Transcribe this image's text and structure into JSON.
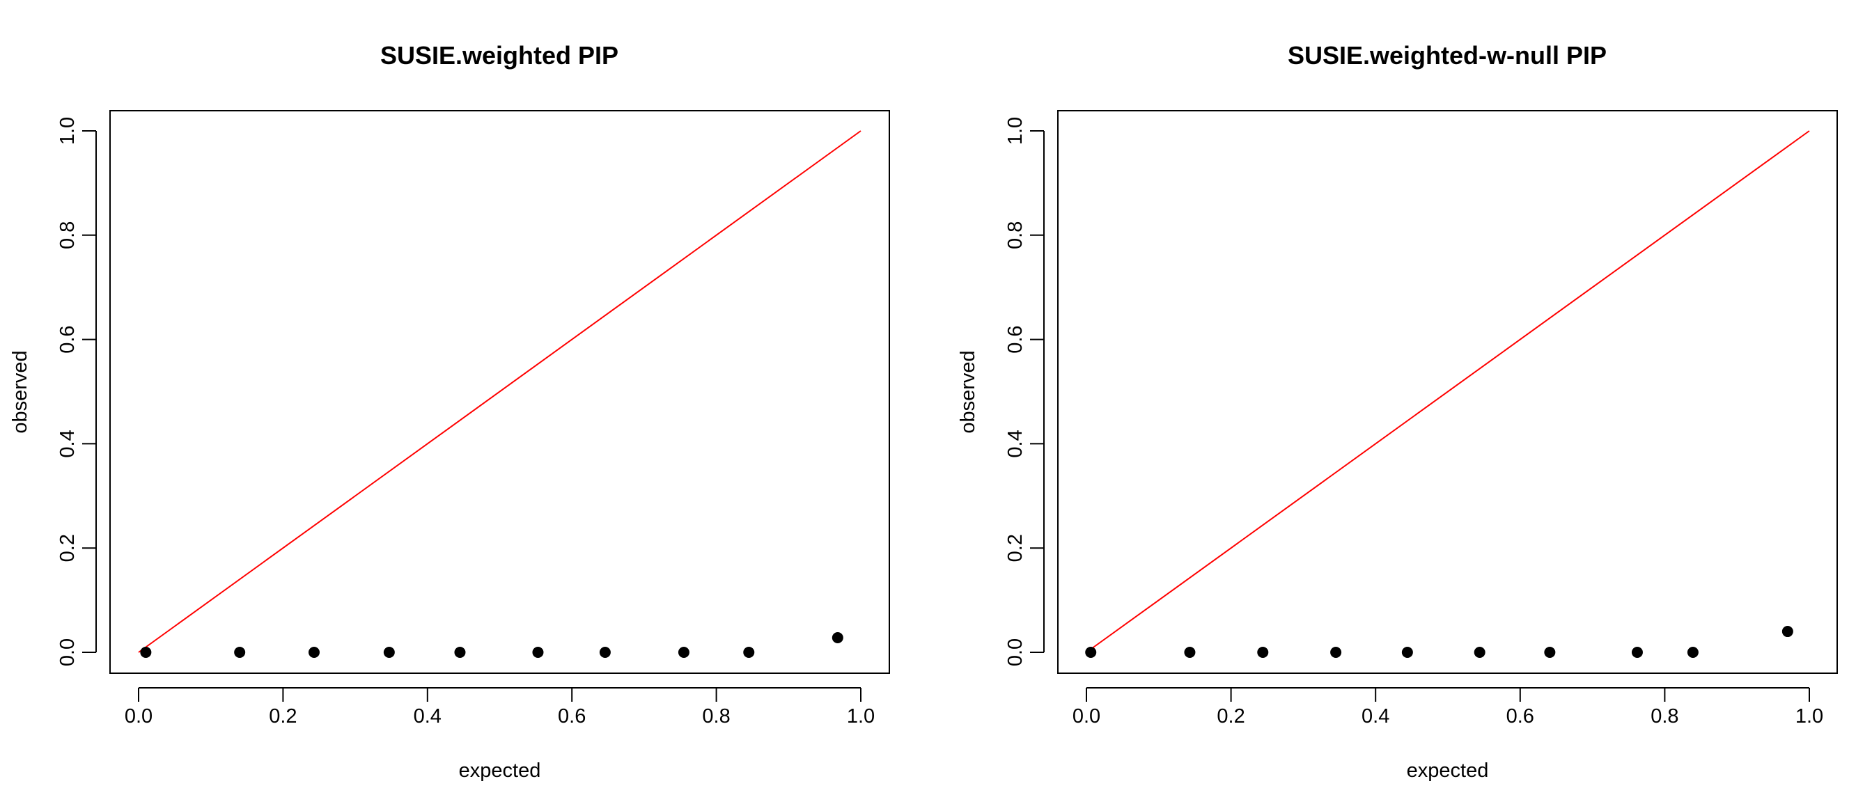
{
  "chart_data": [
    {
      "type": "scatter",
      "title": "SUSIE.weighted PIP",
      "xlabel": "expected",
      "ylabel": "observed",
      "xlim": [
        0,
        1
      ],
      "ylim": [
        0,
        1
      ],
      "xticks": [
        "0.0",
        "0.2",
        "0.4",
        "0.6",
        "0.8",
        "1.0"
      ],
      "yticks": [
        "0.0",
        "0.2",
        "0.4",
        "0.6",
        "0.8",
        "1.0"
      ],
      "grid": false,
      "reference_line": {
        "from": [
          0,
          0
        ],
        "to": [
          1,
          1
        ],
        "color": "#ff0000"
      },
      "point_color": "#000000",
      "series": [
        {
          "x": [
            0.01,
            0.14,
            0.243,
            0.347,
            0.445,
            0.553,
            0.646,
            0.755,
            0.845,
            0.968
          ],
          "y": [
            0.0,
            0.0,
            0.0,
            0.0,
            0.0,
            0.0,
            0.0,
            0.0,
            0.0,
            0.028
          ]
        }
      ]
    },
    {
      "type": "scatter",
      "title": "SUSIE.weighted-w-null PIP",
      "xlabel": "expected",
      "ylabel": "observed",
      "xlim": [
        0,
        1
      ],
      "ylim": [
        0,
        1
      ],
      "xticks": [
        "0.0",
        "0.2",
        "0.4",
        "0.6",
        "0.8",
        "1.0"
      ],
      "yticks": [
        "0.0",
        "0.2",
        "0.4",
        "0.6",
        "0.8",
        "1.0"
      ],
      "grid": false,
      "reference_line": {
        "from": [
          0,
          0
        ],
        "to": [
          1,
          1
        ],
        "color": "#ff0000"
      },
      "point_color": "#000000",
      "series": [
        {
          "x": [
            0.006,
            0.143,
            0.244,
            0.345,
            0.444,
            0.544,
            0.641,
            0.762,
            0.839,
            0.97
          ],
          "y": [
            0.0,
            0.0,
            0.0,
            0.0,
            0.0,
            0.0,
            0.0,
            0.0,
            0.0,
            0.04
          ]
        }
      ]
    }
  ]
}
